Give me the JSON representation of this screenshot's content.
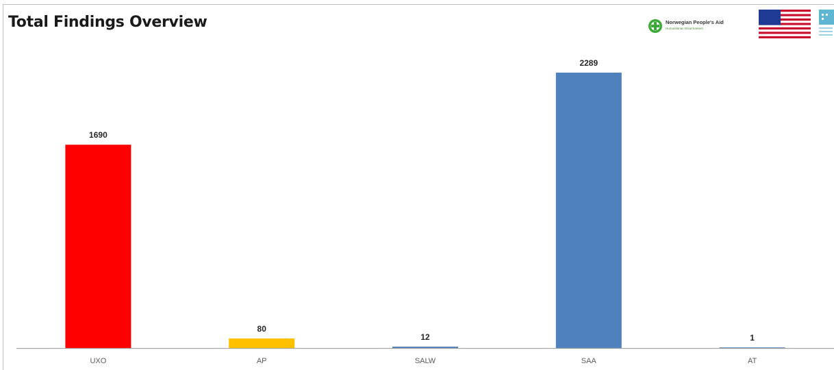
{
  "header": {
    "title": "Total Findings Overview",
    "npa_name": "Norwegian People's Aid",
    "npa_sub": "Humanitarian Disarmament"
  },
  "colors": {
    "UXO": "#ff0000",
    "AP": "#ffc000",
    "SALW": "#4f81bd",
    "SAA": "#4f81bd",
    "AT": "#4f81bd",
    "axis": "#a6a6a6",
    "npa_green": "#3aa935"
  },
  "chart_data": {
    "type": "bar",
    "title": "Total Findings Overview",
    "categories": [
      "UXO",
      "AP",
      "SALW",
      "SAA",
      "AT"
    ],
    "values": [
      1690,
      80,
      12,
      2289,
      1
    ],
    "data_labels": [
      "1690",
      "80",
      "12",
      "2289",
      "1"
    ],
    "xlabel": "",
    "ylabel": "",
    "ylim": [
      0,
      2289
    ],
    "grid": false,
    "legend": "none"
  }
}
